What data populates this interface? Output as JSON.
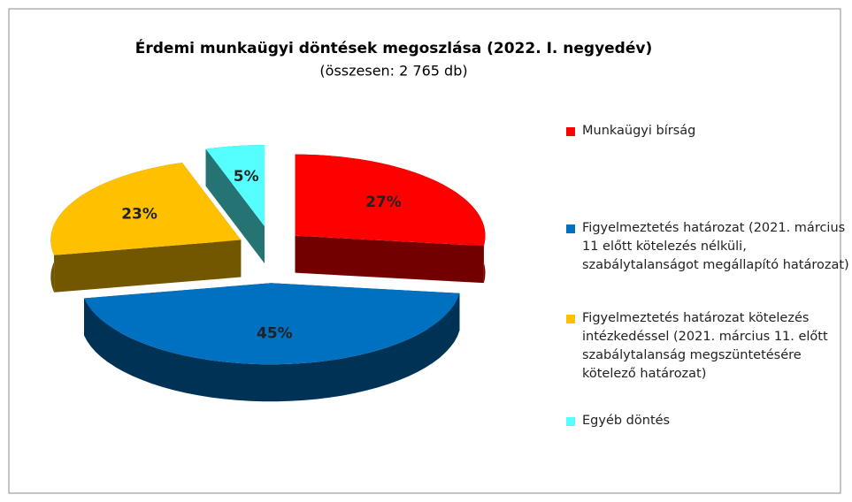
{
  "chart_data": {
    "type": "pie",
    "title": "Érdemi munkaügyi döntések megoszlása (2022. I. negyedév)",
    "subtitle": "(összesen: 2 765 db)",
    "categories": [
      "Munkaügyi bírság",
      "Figyelmeztetés határozat (2021. március 11 előtt kötelezés nélküli, szabálytalanságot megállapító határozat)",
      "Figyelmeztetés határozat kötelezés intézkedéssel  (2021. március 11. előtt szabálytalanság megszüntetésére kötelező határozat)",
      "Egyéb döntés"
    ],
    "values": [
      27,
      45,
      23,
      5
    ],
    "value_labels": [
      "27%",
      "45%",
      "23%",
      "5%"
    ],
    "colors": [
      "#ff0000",
      "#0070c0",
      "#ffc000",
      "#55ffff"
    ],
    "legend": "right"
  }
}
